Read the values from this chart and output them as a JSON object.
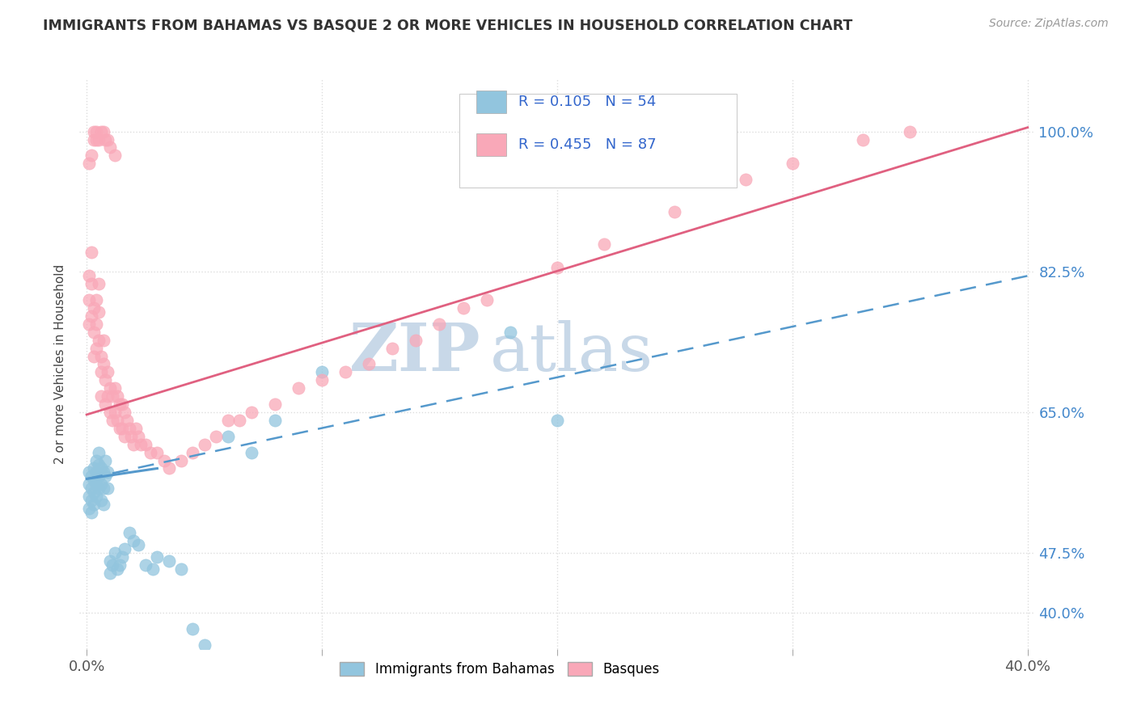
{
  "title": "IMMIGRANTS FROM BAHAMAS VS BASQUE 2 OR MORE VEHICLES IN HOUSEHOLD CORRELATION CHART",
  "source": "Source: ZipAtlas.com",
  "ylabel": "2 or more Vehicles in Household",
  "xlim": [
    -0.003,
    0.403
  ],
  "ylim": [
    0.355,
    1.065
  ],
  "ytick_vals": [
    0.4,
    0.475,
    0.65,
    0.825,
    1.0
  ],
  "ytick_labels": [
    "40.0%",
    "47.5%",
    "65.0%",
    "82.5%",
    "100.0%"
  ],
  "xtick_vals": [
    0.0,
    0.1,
    0.2,
    0.3,
    0.4
  ],
  "xtick_labels": [
    "0.0%",
    "",
    "",
    "",
    "40.0%"
  ],
  "legend_R_blue": "0.105",
  "legend_N_blue": "54",
  "legend_R_pink": "0.455",
  "legend_N_pink": "87",
  "blue_color": "#92C5DE",
  "blue_line_color": "#5599CC",
  "pink_color": "#F9A8B8",
  "pink_line_color": "#E06080",
  "watermark_zip": "ZIP",
  "watermark_atlas": "atlas",
  "watermark_color": "#C8D8E8",
  "background_color": "#FFFFFF",
  "grid_color": "#DDDDDD",
  "blue_scatter_x": [
    0.001,
    0.001,
    0.001,
    0.001,
    0.002,
    0.002,
    0.002,
    0.002,
    0.003,
    0.003,
    0.003,
    0.003,
    0.004,
    0.004,
    0.004,
    0.004,
    0.005,
    0.005,
    0.005,
    0.005,
    0.006,
    0.006,
    0.006,
    0.007,
    0.007,
    0.007,
    0.008,
    0.008,
    0.009,
    0.009,
    0.01,
    0.01,
    0.011,
    0.012,
    0.013,
    0.014,
    0.015,
    0.016,
    0.018,
    0.02,
    0.022,
    0.025,
    0.028,
    0.03,
    0.035,
    0.04,
    0.045,
    0.05,
    0.06,
    0.07,
    0.08,
    0.1,
    0.18,
    0.2
  ],
  "blue_scatter_y": [
    0.575,
    0.56,
    0.545,
    0.53,
    0.57,
    0.555,
    0.54,
    0.525,
    0.58,
    0.565,
    0.55,
    0.535,
    0.59,
    0.575,
    0.56,
    0.545,
    0.6,
    0.585,
    0.57,
    0.555,
    0.58,
    0.56,
    0.54,
    0.575,
    0.555,
    0.535,
    0.59,
    0.57,
    0.575,
    0.555,
    0.465,
    0.45,
    0.46,
    0.475,
    0.455,
    0.46,
    0.47,
    0.48,
    0.5,
    0.49,
    0.485,
    0.46,
    0.455,
    0.47,
    0.465,
    0.455,
    0.38,
    0.36,
    0.62,
    0.6,
    0.64,
    0.7,
    0.75,
    0.64
  ],
  "pink_scatter_x": [
    0.001,
    0.001,
    0.001,
    0.002,
    0.002,
    0.002,
    0.003,
    0.003,
    0.003,
    0.004,
    0.004,
    0.004,
    0.005,
    0.005,
    0.005,
    0.006,
    0.006,
    0.006,
    0.007,
    0.007,
    0.008,
    0.008,
    0.009,
    0.009,
    0.01,
    0.01,
    0.011,
    0.011,
    0.012,
    0.012,
    0.013,
    0.013,
    0.014,
    0.014,
    0.015,
    0.015,
    0.016,
    0.016,
    0.017,
    0.018,
    0.019,
    0.02,
    0.021,
    0.022,
    0.023,
    0.025,
    0.027,
    0.03,
    0.033,
    0.035,
    0.04,
    0.045,
    0.05,
    0.055,
    0.06,
    0.065,
    0.07,
    0.08,
    0.09,
    0.1,
    0.11,
    0.12,
    0.13,
    0.14,
    0.15,
    0.16,
    0.17,
    0.2,
    0.22,
    0.25,
    0.28,
    0.3,
    0.33,
    0.35,
    0.001,
    0.002,
    0.003,
    0.003,
    0.004,
    0.004,
    0.005,
    0.006,
    0.007,
    0.008,
    0.009,
    0.01,
    0.012
  ],
  "pink_scatter_y": [
    0.82,
    0.79,
    0.76,
    0.85,
    0.81,
    0.77,
    0.78,
    0.75,
    0.72,
    0.79,
    0.76,
    0.73,
    0.81,
    0.775,
    0.74,
    0.72,
    0.7,
    0.67,
    0.74,
    0.71,
    0.69,
    0.66,
    0.7,
    0.67,
    0.68,
    0.65,
    0.67,
    0.64,
    0.68,
    0.65,
    0.67,
    0.64,
    0.66,
    0.63,
    0.66,
    0.63,
    0.65,
    0.62,
    0.64,
    0.63,
    0.62,
    0.61,
    0.63,
    0.62,
    0.61,
    0.61,
    0.6,
    0.6,
    0.59,
    0.58,
    0.59,
    0.6,
    0.61,
    0.62,
    0.64,
    0.64,
    0.65,
    0.66,
    0.68,
    0.69,
    0.7,
    0.71,
    0.73,
    0.74,
    0.76,
    0.78,
    0.79,
    0.83,
    0.86,
    0.9,
    0.94,
    0.96,
    0.99,
    1.0,
    0.96,
    0.97,
    0.99,
    1.0,
    0.99,
    1.0,
    0.99,
    1.0,
    1.0,
    0.99,
    0.99,
    0.98,
    0.97
  ]
}
